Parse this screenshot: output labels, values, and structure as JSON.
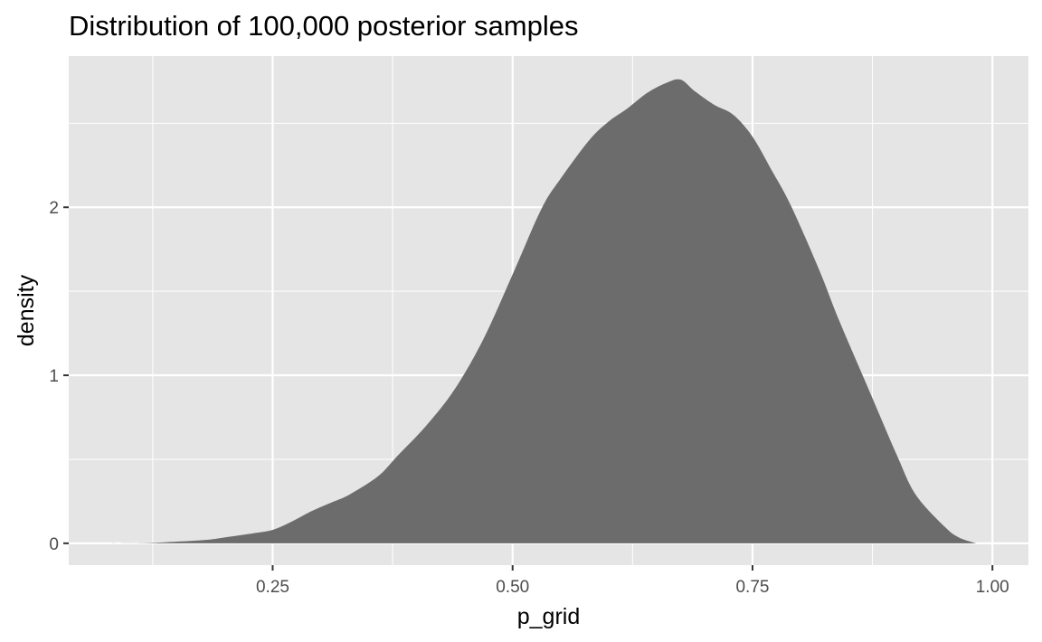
{
  "chart_data": {
    "type": "area",
    "title": "Distribution of 100,000 posterior samples",
    "xlabel": "p_grid",
    "ylabel": "density",
    "xlim": [
      0.0375,
      1.0375
    ],
    "ylim": [
      -0.13,
      2.9
    ],
    "x_ticks": [
      0.25,
      0.5,
      0.75,
      1.0
    ],
    "x_tick_labels": [
      "0.25",
      "0.50",
      "0.75",
      "1.00"
    ],
    "y_ticks": [
      0,
      1,
      2
    ],
    "y_tick_labels": [
      "0",
      "1",
      "2"
    ],
    "grid": true,
    "colors": {
      "panel": "#e5e5e5",
      "grid": "#ffffff",
      "fill": "#6c6c6c",
      "tick": "#333333"
    },
    "series": [
      {
        "x": [
          0.082,
          0.12,
          0.15,
          0.18,
          0.2,
          0.23,
          0.25,
          0.27,
          0.29,
          0.31,
          0.33,
          0.36,
          0.38,
          0.41,
          0.44,
          0.47,
          0.5,
          0.53,
          0.55,
          0.58,
          0.6,
          0.62,
          0.64,
          0.66,
          0.675,
          0.69,
          0.71,
          0.73,
          0.75,
          0.77,
          0.79,
          0.82,
          0.84,
          0.87,
          0.9,
          0.92,
          0.95,
          0.965,
          0.983
        ],
        "y": [
          0.0,
          0.002,
          0.01,
          0.02,
          0.035,
          0.06,
          0.08,
          0.13,
          0.19,
          0.24,
          0.29,
          0.4,
          0.52,
          0.7,
          0.92,
          1.22,
          1.6,
          1.99,
          2.17,
          2.4,
          2.51,
          2.59,
          2.68,
          2.74,
          2.76,
          2.69,
          2.61,
          2.55,
          2.42,
          2.22,
          2.01,
          1.62,
          1.33,
          0.93,
          0.53,
          0.29,
          0.1,
          0.035,
          0.0
        ]
      }
    ]
  }
}
